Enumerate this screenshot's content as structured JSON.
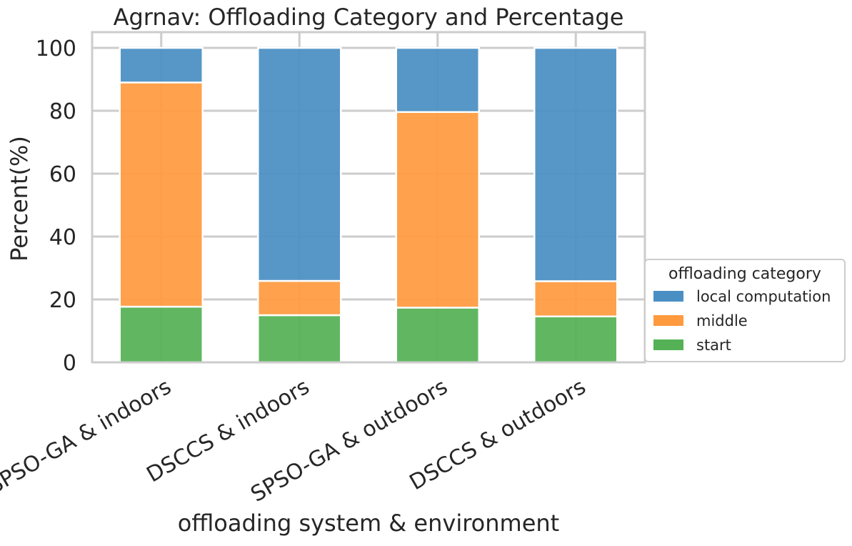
{
  "chart_data": {
    "type": "bar",
    "stacked": true,
    "title": "Agrnav: Offloading Category and Percentage",
    "xlabel": "offloading system & environment",
    "ylabel": "Percent(%)",
    "ylim": [
      0,
      105
    ],
    "yticks": [
      0,
      20,
      40,
      60,
      80,
      100
    ],
    "categories": [
      "SPSO-GA & indoors",
      "DSCCS & indoors",
      "SPSO-GA & outdoors",
      "DSCCS & outdoors"
    ],
    "series": [
      {
        "name": "start",
        "color": "#55b155",
        "values": [
          17.7,
          15.0,
          17.4,
          14.6
        ]
      },
      {
        "name": "middle",
        "color": "#ff9a3f",
        "values": [
          71.3,
          10.9,
          62.2,
          11.2
        ]
      },
      {
        "name": "local computation",
        "color": "#4a8fc4",
        "values": [
          11.0,
          74.1,
          20.4,
          74.2
        ]
      }
    ],
    "legend": {
      "title": "offloading category",
      "position": "lower-right-outside",
      "order": [
        "local computation",
        "middle",
        "start"
      ]
    },
    "grid": true
  }
}
